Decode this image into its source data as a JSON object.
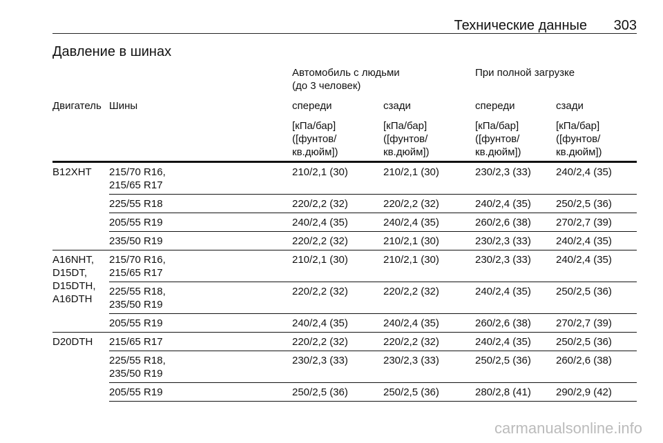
{
  "header": {
    "section": "Технические данные",
    "page": "303"
  },
  "title": "Давление в шинах",
  "table": {
    "group_headers": [
      "Автомобиль с людьми\n(до 3 человек)",
      "При полной загрузке"
    ],
    "columns": [
      "Двигатель",
      "Шины",
      "спереди",
      "сзади",
      "спереди",
      "сзади"
    ],
    "units": [
      "[кПа/бар]\n([фунтов/\nкв.дюйм])",
      "[кПа/бар]\n([фунтов/\nкв.дюйм])",
      "[кПа/бар]\n([фунтов/\nкв.дюйм])",
      "[кПа/бар]\n([фунтов/\nкв.дюйм])"
    ],
    "groups": [
      {
        "engine": "B12XHT",
        "rows": [
          {
            "tires": "215/70 R16,\n215/65 R17",
            "values": [
              "210/2,1 (30)",
              "210/2,1 (30)",
              "230/2,3 (33)",
              "240/2,4 (35)"
            ]
          },
          {
            "tires": "225/55 R18",
            "values": [
              "220/2,2 (32)",
              "220/2,2 (32)",
              "240/2,4 (35)",
              "250/2,5 (36)"
            ]
          },
          {
            "tires": "205/55 R19",
            "values": [
              "240/2,4 (35)",
              "240/2,4 (35)",
              "260/2,6 (38)",
              "270/2,7 (39)"
            ]
          },
          {
            "tires": "235/50 R19",
            "values": [
              "220/2,2 (32)",
              "210/2,1 (30)",
              "230/2,3 (33)",
              "240/2,4 (35)"
            ]
          }
        ]
      },
      {
        "engine": "A16NHT,\nD15DT,\nD15DTH,\nA16DTH",
        "rows": [
          {
            "tires": "215/70 R16,\n215/65 R17",
            "values": [
              "210/2,1 (30)",
              "210/2,1 (30)",
              "230/2,3 (33)",
              "240/2,4 (35)"
            ]
          },
          {
            "tires": "225/55 R18,\n235/50 R19",
            "values": [
              "220/2,2 (32)",
              "220/2,2 (32)",
              "240/2,4 (35)",
              "250/2,5 (36)"
            ]
          },
          {
            "tires": "205/55 R19",
            "values": [
              "240/2,4 (35)",
              "240/2,4 (35)",
              "260/2,6 (38)",
              "270/2,7 (39)"
            ]
          }
        ]
      },
      {
        "engine": "D20DTH",
        "rows": [
          {
            "tires": "215/65 R17",
            "values": [
              "220/2,2 (32)",
              "220/2,2 (32)",
              "240/2,4 (35)",
              "250/2,5 (36)"
            ]
          },
          {
            "tires": "225/55 R18,\n235/50 R19",
            "values": [
              "230/2,3 (33)",
              "230/2,3 (33)",
              "250/2,5 (36)",
              "260/2,6 (38)"
            ]
          },
          {
            "tires": "205/55 R19",
            "values": [
              "250/2,5 (36)",
              "250/2,5 (36)",
              "280/2,8 (41)",
              "290/2,9 (42)"
            ]
          }
        ]
      }
    ]
  },
  "watermark": "carmanualsonline.info"
}
